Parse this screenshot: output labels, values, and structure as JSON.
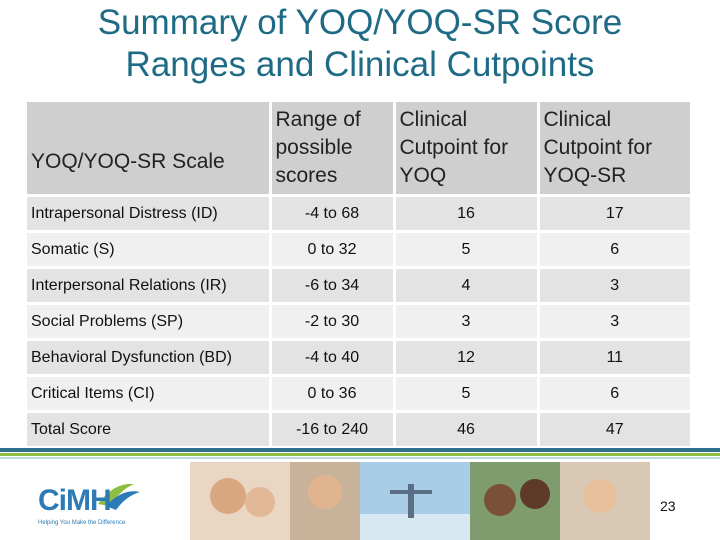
{
  "title": {
    "line1": "Summary of YOQ/YOQ-SR Score",
    "line2": "Ranges and Clinical Cutpoints"
  },
  "table": {
    "headers": {
      "scale": "YOQ/YOQ-SR Scale",
      "range_l1": "Range of",
      "range_l2": "possible",
      "range_l3": "scores",
      "yoq_l1": "Clinical",
      "yoq_l2": "Cutpoint for",
      "yoq_l3": "YOQ",
      "sr_l1": "Clinical",
      "sr_l2": "Cutpoint for",
      "sr_l3": "YOQ-SR"
    },
    "rows": [
      {
        "scale": "Intrapersonal Distress (ID)",
        "range": "-4 to 68",
        "yoq": "16",
        "yoqsr": "17"
      },
      {
        "scale": "Somatic (S)",
        "range": "0 to 32",
        "yoq": "5",
        "yoqsr": "6"
      },
      {
        "scale": "Interpersonal Relations (IR)",
        "range": "-6 to 34",
        "yoq": "4",
        "yoqsr": "3"
      },
      {
        "scale": "Social Problems (SP)",
        "range": "-2 to 30",
        "yoq": "3",
        "yoqsr": "3"
      },
      {
        "scale": "Behavioral Dysfunction (BD)",
        "range": "-4 to 40",
        "yoq": "12",
        "yoqsr": "11"
      },
      {
        "scale": "Critical Items (CI)",
        "range": "0 to 36",
        "yoq": "5",
        "yoqsr": "6"
      },
      {
        "scale": "Total Score",
        "range": "-16 to 240",
        "yoq": "46",
        "yoqsr": "47"
      }
    ]
  },
  "footer": {
    "logo_text": "CiMH",
    "logo_tagline": "Helping You Make the Difference",
    "page_number": "23"
  },
  "colors": {
    "title": "#1f6b86",
    "header_bg": "#cfcfcf",
    "accent_blue": "#2e6f8c",
    "accent_green": "#8cbf3f"
  }
}
